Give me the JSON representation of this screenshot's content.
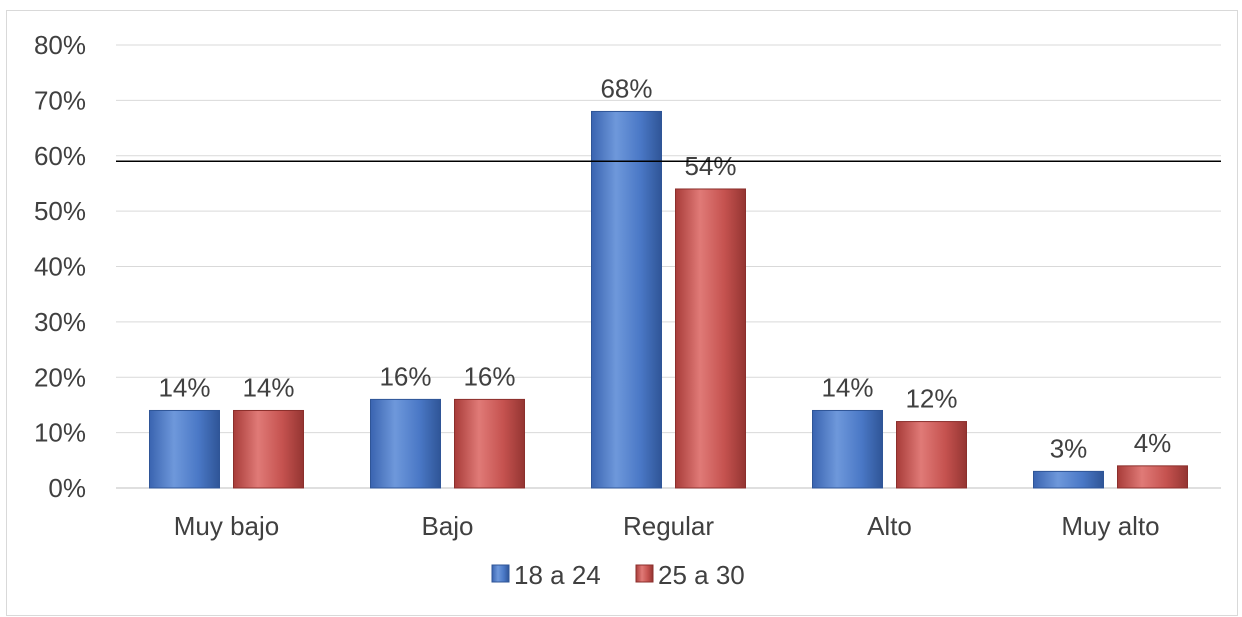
{
  "chart_data": {
    "type": "bar",
    "title": "",
    "xlabel": "",
    "ylabel": "",
    "categories": [
      "Muy bajo",
      "Bajo",
      "Regular",
      "Alto",
      "Muy alto"
    ],
    "series": [
      {
        "name": "18 a 24",
        "values": [
          14,
          16,
          68,
          14,
          3
        ],
        "labels": [
          "14%",
          "16%",
          "68%",
          "14%",
          "3%"
        ],
        "color": "#4472c4"
      },
      {
        "name": "25 a 30",
        "values": [
          14,
          16,
          54,
          12,
          4
        ],
        "labels": [
          "14%",
          "16%",
          "54%",
          "12%",
          "4%"
        ],
        "color": "#c0504d"
      }
    ],
    "ylim": [
      0,
      80
    ],
    "yticks": [
      0,
      10,
      20,
      30,
      40,
      50,
      60,
      70,
      80
    ],
    "ytick_labels": [
      "0%",
      "10%",
      "20%",
      "30%",
      "40%",
      "50%",
      "60%",
      "70%",
      "80%"
    ],
    "reference_line": 59,
    "grid": true,
    "legend": "bottom"
  }
}
